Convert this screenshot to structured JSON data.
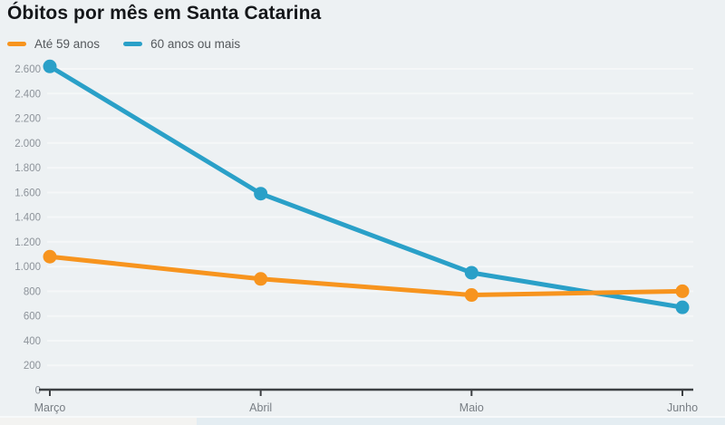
{
  "chart": {
    "title": "Óbitos por mês em Santa Catarina"
  },
  "chart_data": {
    "type": "line",
    "categories": [
      "Março",
      "Abril",
      "Maio",
      "Junho"
    ],
    "series": [
      {
        "name": "Até 59 anos",
        "color": "#f7941e",
        "values": [
          1080,
          900,
          770,
          800
        ]
      },
      {
        "name": "60 anos ou mais",
        "color": "#2aa0c8",
        "values": [
          2620,
          1590,
          950,
          670
        ]
      }
    ],
    "xlabel": "",
    "ylabel": "",
    "ylim": [
      0,
      2600
    ],
    "y_tick_step": 200,
    "y_tick_labels": [
      "0",
      "200",
      "400",
      "600",
      "800",
      "1.000",
      "1.200",
      "1.400",
      "1.600",
      "1.800",
      "2.000",
      "2.200",
      "2.400",
      "2.600"
    ],
    "grid": "horizontal",
    "legend_position": "top-left",
    "markers": "filled-circles"
  },
  "colors": {
    "background": "#edf1f3",
    "gridline": "#f5f7f8",
    "axis": "#3d4043",
    "tick_label": "#8d939a",
    "month_label": "#787e84",
    "legend_text": "#54585c",
    "title_text": "#15171a",
    "series_orange": "#f7941e",
    "series_blue": "#2aa0c8"
  }
}
